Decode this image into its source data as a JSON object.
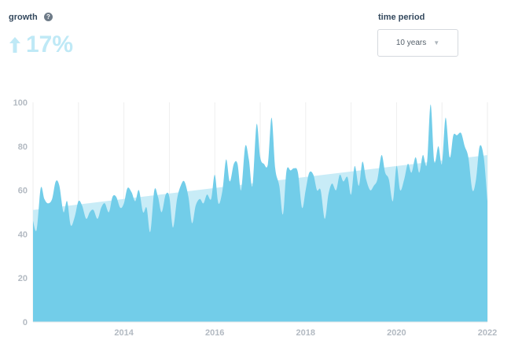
{
  "header": {
    "growth_label": "growth",
    "help_icon": "?",
    "growth_value": "17%",
    "growth_direction": "up",
    "period_label": "time period",
    "period_selected": "10 years"
  },
  "colors": {
    "area": "#72cde9",
    "trend": "#c8ecf7",
    "growth_text": "#bfe9f6",
    "grid": "#eeeeee",
    "tick_text": "#b3bac2"
  },
  "chart_data": {
    "type": "area",
    "title": "",
    "xlabel": "",
    "ylabel": "",
    "xlim": [
      2012.0,
      2022.0
    ],
    "ylim": [
      0,
      100
    ],
    "x_ticks": [
      2014,
      2016,
      2018,
      2020,
      2022
    ],
    "y_ticks": [
      0,
      20,
      40,
      60,
      80,
      100
    ],
    "grid": "vertical",
    "trend_line": {
      "x": [
        2012.0,
        2022.0
      ],
      "y": [
        51,
        76
      ]
    },
    "series": [
      {
        "x": [
          2012.0,
          2012.08,
          2012.17,
          2012.25,
          2012.33,
          2012.42,
          2012.5,
          2012.58,
          2012.67,
          2012.75,
          2012.83,
          2012.92,
          2013.0,
          2013.08,
          2013.17,
          2013.25,
          2013.33,
          2013.42,
          2013.5,
          2013.58,
          2013.67,
          2013.75,
          2013.83,
          2013.92,
          2014.0,
          2014.08,
          2014.17,
          2014.25,
          2014.33,
          2014.42,
          2014.5,
          2014.58,
          2014.67,
          2014.75,
          2014.83,
          2014.92,
          2015.0,
          2015.08,
          2015.17,
          2015.25,
          2015.33,
          2015.42,
          2015.5,
          2015.58,
          2015.67,
          2015.75,
          2015.83,
          2015.92,
          2016.0,
          2016.08,
          2016.17,
          2016.25,
          2016.33,
          2016.42,
          2016.5,
          2016.58,
          2016.67,
          2016.75,
          2016.83,
          2016.92,
          2017.0,
          2017.08,
          2017.17,
          2017.25,
          2017.33,
          2017.42,
          2017.5,
          2017.58,
          2017.67,
          2017.75,
          2017.83,
          2017.92,
          2018.0,
          2018.08,
          2018.17,
          2018.25,
          2018.33,
          2018.42,
          2018.5,
          2018.58,
          2018.67,
          2018.75,
          2018.83,
          2018.92,
          2019.0,
          2019.08,
          2019.17,
          2019.25,
          2019.33,
          2019.42,
          2019.5,
          2019.58,
          2019.67,
          2019.75,
          2019.83,
          2019.92,
          2020.0,
          2020.08,
          2020.17,
          2020.25,
          2020.33,
          2020.42,
          2020.5,
          2020.58,
          2020.67,
          2020.75,
          2020.83,
          2020.92,
          2021.0,
          2021.08,
          2021.17,
          2021.25,
          2021.33,
          2021.42,
          2021.5,
          2021.58,
          2021.67,
          2021.75,
          2021.83,
          2021.92,
          2022.0
        ],
        "values": [
          46,
          42,
          61,
          56,
          54,
          56,
          64,
          62,
          50,
          55,
          44,
          48,
          55,
          53,
          47,
          50,
          51,
          47,
          52,
          54,
          50,
          57,
          57,
          52,
          54,
          61,
          59,
          55,
          60,
          50,
          52,
          41,
          60,
          57,
          50,
          58,
          57,
          43,
          56,
          62,
          64,
          57,
          45,
          53,
          56,
          54,
          58,
          56,
          67,
          54,
          60,
          74,
          64,
          72,
          72,
          60,
          80,
          74,
          62,
          90,
          75,
          72,
          72,
          93,
          70,
          62,
          49,
          69,
          69,
          70,
          68,
          52,
          60,
          68,
          67,
          60,
          60,
          47,
          58,
          63,
          60,
          67,
          64,
          66,
          58,
          71,
          62,
          73,
          65,
          60,
          62,
          65,
          76,
          68,
          65,
          55,
          71,
          60,
          65,
          72,
          68,
          75,
          68,
          76,
          72,
          99,
          73,
          80,
          72,
          93,
          75,
          85,
          85,
          86,
          80,
          75,
          60,
          65,
          80,
          75,
          55
        ]
      }
    ]
  }
}
